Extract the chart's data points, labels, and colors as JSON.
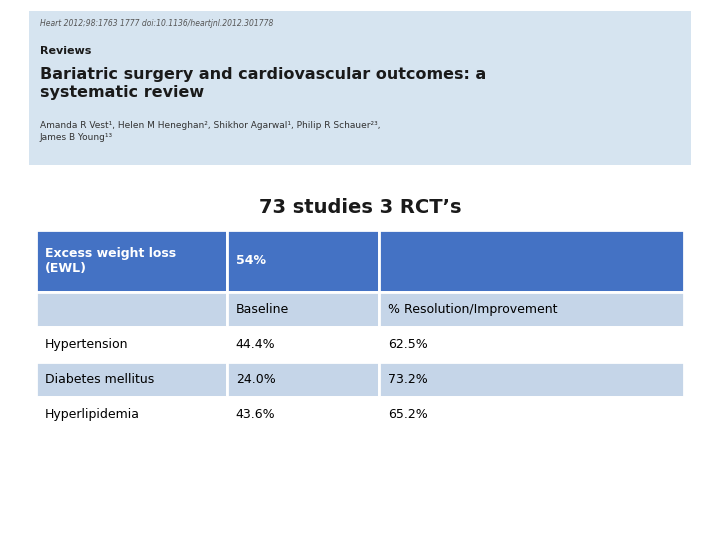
{
  "title": "73 studies 3 RCT’s",
  "title_fontsize": 14,
  "background_color": "#ffffff",
  "light_blue_bg": "#d6e4f0",
  "journal_text": "Heart 2012;98:1763 1777 doi:10.1136/heartjnl.2012.301778",
  "section_label": "Reviews",
  "article_title": "Bariatric surgery and cardiovascular outcomes: a\nsystematic review",
  "authors": "Amanda R Vest¹, Helen M Heneghan², Shikhor Agarwal¹, Philip R Schauer²³,\nJames B Young¹³",
  "blue_color": "#4472C4",
  "row_light": "#c5d5e8",
  "row_white": "#ffffff",
  "header_row_col1": "Excess weight loss\n(EWL)",
  "header_row_col2": "54%",
  "header_row_col3": "",
  "sub_header": [
    "",
    "Baseline",
    "% Resolution/Improvement"
  ],
  "rows": [
    [
      "Hypertension",
      "44.4%",
      "62.5%"
    ],
    [
      "Diabetes mellitus",
      "24.0%",
      "73.2%"
    ],
    [
      "Hyperlipidemia",
      "43.6%",
      "65.2%"
    ]
  ]
}
